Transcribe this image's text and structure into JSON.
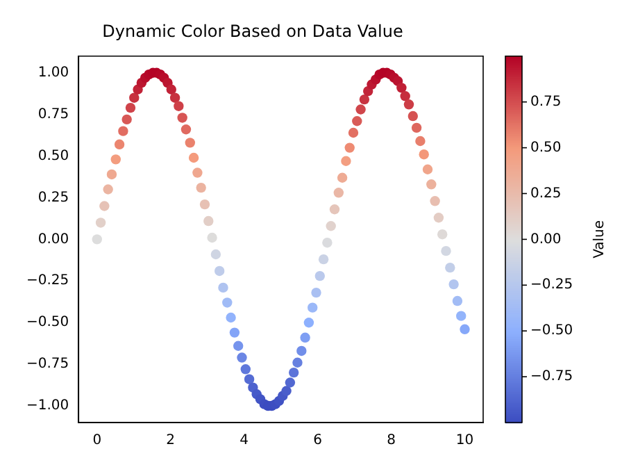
{
  "chart_data": {
    "type": "scatter",
    "title": "Dynamic Color Based on Data Value",
    "clabel": "Value",
    "x": [
      0,
      0.1,
      0.2,
      0.3,
      0.4,
      0.51,
      0.61,
      0.71,
      0.81,
      0.91,
      1.01,
      1.11,
      1.21,
      1.31,
      1.41,
      1.52,
      1.62,
      1.72,
      1.82,
      1.92,
      2.02,
      2.12,
      2.22,
      2.32,
      2.42,
      2.53,
      2.63,
      2.73,
      2.83,
      2.93,
      3.03,
      3.13,
      3.23,
      3.33,
      3.43,
      3.54,
      3.64,
      3.74,
      3.84,
      3.94,
      4.04,
      4.14,
      4.24,
      4.34,
      4.44,
      4.55,
      4.65,
      4.75,
      4.85,
      4.95,
      5.05,
      5.15,
      5.25,
      5.35,
      5.45,
      5.56,
      5.66,
      5.76,
      5.86,
      5.96,
      6.06,
      6.16,
      6.26,
      6.36,
      6.46,
      6.57,
      6.67,
      6.77,
      6.87,
      6.97,
      7.07,
      7.17,
      7.27,
      7.37,
      7.47,
      7.58,
      7.68,
      7.78,
      7.88,
      7.98,
      8.08,
      8.18,
      8.28,
      8.38,
      8.48,
      8.59,
      8.69,
      8.79,
      8.89,
      8.99,
      9.09,
      9.19,
      9.29,
      9.39,
      9.49,
      9.6,
      9.7,
      9.8,
      9.9,
      10
    ],
    "values": [
      0,
      0.1,
      0.2,
      0.3,
      0.39,
      0.48,
      0.57,
      0.65,
      0.72,
      0.79,
      0.85,
      0.9,
      0.94,
      0.97,
      0.99,
      1,
      1,
      0.99,
      0.97,
      0.94,
      0.9,
      0.85,
      0.8,
      0.73,
      0.66,
      0.58,
      0.49,
      0.4,
      0.31,
      0.21,
      0.11,
      0.01,
      -0.09,
      -0.19,
      -0.29,
      -0.38,
      -0.47,
      -0.56,
      -0.64,
      -0.71,
      -0.78,
      -0.84,
      -0.89,
      -0.93,
      -0.96,
      -0.99,
      -1,
      -1,
      -0.99,
      -0.97,
      -0.94,
      -0.91,
      -0.86,
      -0.8,
      -0.74,
      -0.67,
      -0.59,
      -0.5,
      -0.41,
      -0.32,
      -0.22,
      -0.12,
      -0.02,
      0.08,
      0.18,
      0.28,
      0.37,
      0.47,
      0.55,
      0.64,
      0.71,
      0.78,
      0.84,
      0.89,
      0.93,
      0.96,
      0.99,
      1,
      1,
      0.99,
      0.97,
      0.95,
      0.91,
      0.86,
      0.81,
      0.74,
      0.67,
      0.59,
      0.51,
      0.42,
      0.33,
      0.23,
      0.13,
      0.03,
      -0.07,
      -0.17,
      -0.27,
      -0.37,
      -0.46,
      -0.54
    ],
    "cvalues": [
      0,
      0.1,
      0.2,
      0.3,
      0.39,
      0.48,
      0.57,
      0.65,
      0.72,
      0.79,
      0.85,
      0.9,
      0.94,
      0.97,
      0.99,
      1,
      1,
      0.99,
      0.97,
      0.94,
      0.9,
      0.85,
      0.8,
      0.73,
      0.66,
      0.58,
      0.49,
      0.4,
      0.31,
      0.21,
      0.11,
      0.01,
      -0.09,
      -0.19,
      -0.29,
      -0.38,
      -0.47,
      -0.56,
      -0.64,
      -0.71,
      -0.78,
      -0.84,
      -0.89,
      -0.93,
      -0.96,
      -0.99,
      -1,
      -1,
      -0.99,
      -0.97,
      -0.94,
      -0.91,
      -0.86,
      -0.8,
      -0.74,
      -0.67,
      -0.59,
      -0.5,
      -0.41,
      -0.32,
      -0.22,
      -0.12,
      -0.02,
      0.08,
      0.18,
      0.28,
      0.37,
      0.47,
      0.55,
      0.64,
      0.71,
      0.78,
      0.84,
      0.89,
      0.93,
      0.96,
      0.99,
      1,
      1,
      0.99,
      0.97,
      0.95,
      0.91,
      0.86,
      0.81,
      0.74,
      0.67,
      0.59,
      0.51,
      0.42,
      0.33,
      0.23,
      0.13,
      0.03,
      -0.07,
      -0.17,
      -0.27,
      -0.37,
      -0.46,
      -0.54
    ],
    "xlim": [
      -0.5,
      10.5
    ],
    "xticks": [
      0,
      2,
      4,
      6,
      8,
      10
    ],
    "ylim": [
      -1.1,
      1.1
    ],
    "yticks": [
      {
        "value": -1,
        "label": "−1.00"
      },
      {
        "value": -0.75,
        "label": "−0.75"
      },
      {
        "value": -0.5,
        "label": "−0.50"
      },
      {
        "value": -0.25,
        "label": "−0.25"
      },
      {
        "value": 0,
        "label": "0.00"
      },
      {
        "value": 0.25,
        "label": "0.25"
      },
      {
        "value": 0.5,
        "label": "0.50"
      },
      {
        "value": 0.75,
        "label": "0.75"
      },
      {
        "value": 1,
        "label": "1.00"
      }
    ],
    "clim": [
      -1,
      1
    ],
    "cticks": [
      {
        "value": -0.75,
        "label": "−0.75"
      },
      {
        "value": -0.5,
        "label": "−0.50"
      },
      {
        "value": -0.25,
        "label": "−0.25"
      },
      {
        "value": 0,
        "label": "0.00"
      },
      {
        "value": 0.25,
        "label": "0.25"
      },
      {
        "value": 0.5,
        "label": "0.50"
      },
      {
        "value": 0.75,
        "label": "0.75"
      }
    ],
    "marker": "circle",
    "grid": false,
    "legend": false
  }
}
